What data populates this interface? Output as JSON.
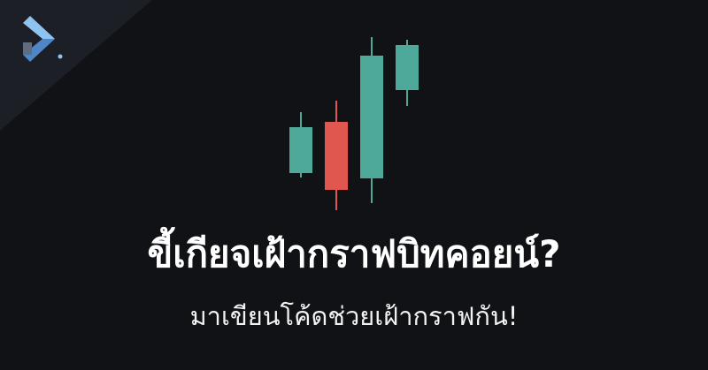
{
  "banner": {
    "headline": "ขี้เกียจเฝ้ากราฟบิทคอยน์?",
    "subheadline": "มาเขียนโค้ดช่วยเฝ้ากราฟกัน!",
    "logo_icon": "play-arrow-logo-icon",
    "chart_icon": "candlestick-chart-icon"
  },
  "colors": {
    "background": "#101215",
    "corner": "#1c1f25",
    "bullish": "#4fa99a",
    "bearish": "#e0574f",
    "text": "#ffffff",
    "logo_light": "#9cc8f0",
    "logo_dark": "#5a6f86"
  }
}
